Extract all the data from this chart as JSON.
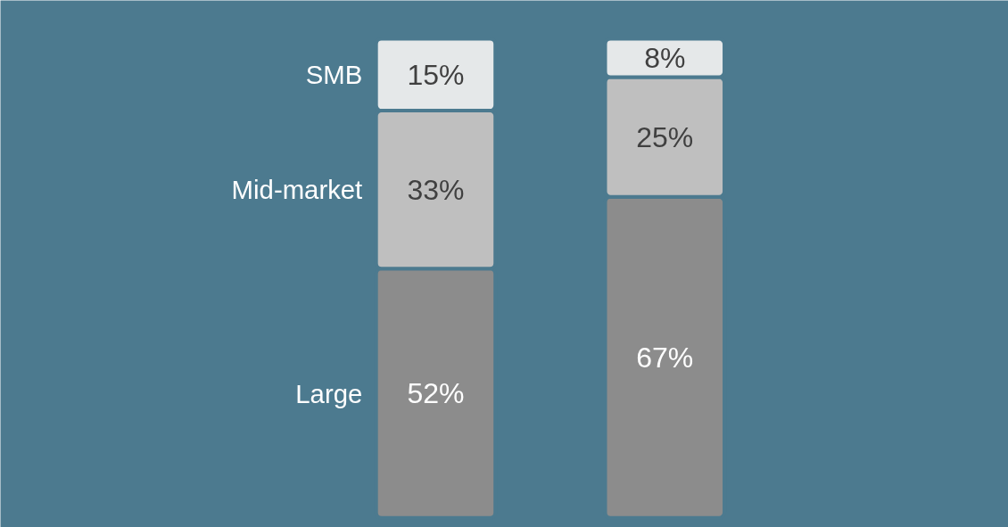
{
  "chart_data": {
    "type": "bar",
    "stacked": true,
    "categories": [
      null,
      null
    ],
    "tick_labels": false,
    "grid": false,
    "legend": false,
    "series": [
      {
        "name": "Large",
        "color": "#8c8c8c",
        "values": [
          52,
          67
        ],
        "value_labels": [
          "52%",
          "67%"
        ]
      },
      {
        "name": "Mid-market",
        "color": "#bfbfbf",
        "values": [
          33,
          25
        ],
        "value_labels": [
          "33%",
          "25%"
        ]
      },
      {
        "name": "SMB",
        "color": "#e5e8e9",
        "values": [
          15,
          8
        ],
        "value_labels": [
          "15%",
          "8%"
        ]
      }
    ]
  }
}
